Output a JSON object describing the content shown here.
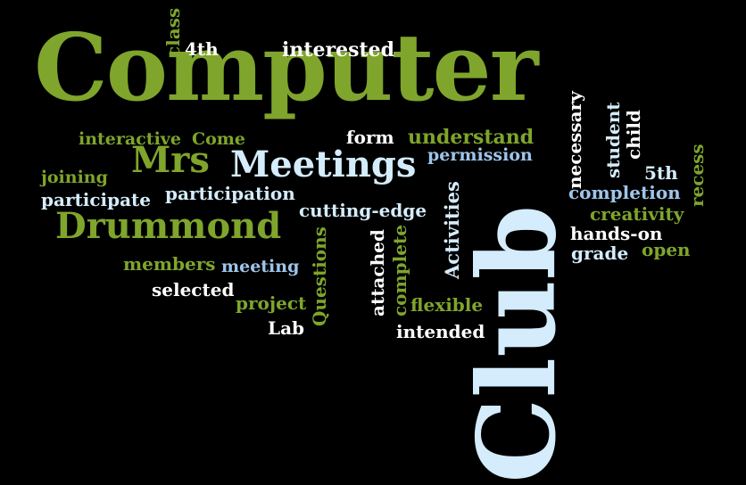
{
  "colors": {
    "background": "#000000",
    "green": "#7fa52c",
    "white": "#ffffff",
    "light_blue": "#d4ecfb",
    "blue": "#9fc5ea"
  },
  "words": {
    "computer": "Computer",
    "club": "Club",
    "meetings": "Meetings",
    "mrs": "Mrs",
    "drummond": "Drummond",
    "class": "class",
    "fourth": "4th",
    "interested": "interested",
    "interactive": "interactive",
    "come": "Come",
    "form": "form",
    "understand": "understand",
    "permission": "permission",
    "joining": "joining",
    "participate": "participate",
    "participation": "participation",
    "cutting_edge": "cutting-edge",
    "members": "members",
    "meeting": "meeting",
    "selected": "selected",
    "project": "project",
    "lab": "Lab",
    "questions": "Questions",
    "attached": "attached",
    "complete": "complete",
    "activities": "Activities",
    "flexible": "flexible",
    "intended": "intended",
    "necessary": "necessary",
    "student": "student",
    "child": "child",
    "fifth": "5th",
    "recess": "recess",
    "completion": "completion",
    "creativity": "creativity",
    "hands_on": "hands-on",
    "grade": "grade",
    "open": "open"
  }
}
